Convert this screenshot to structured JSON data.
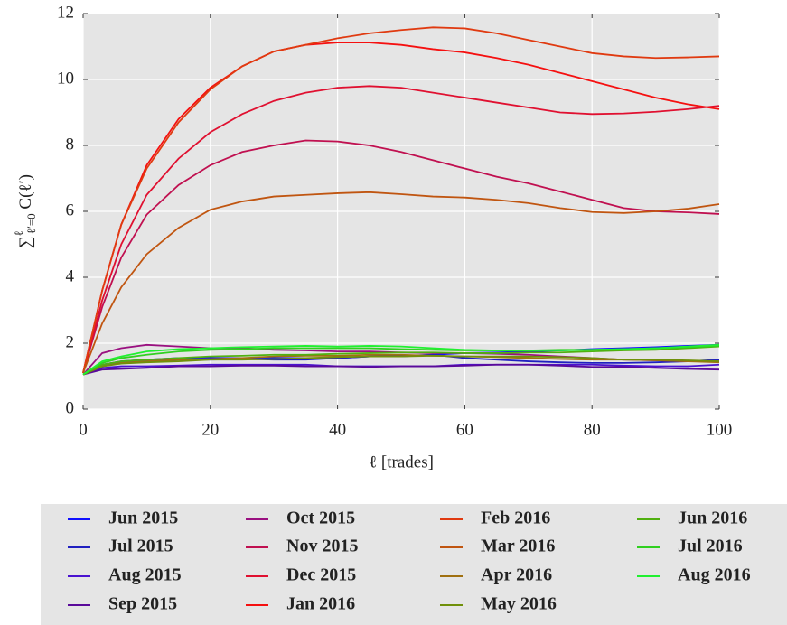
{
  "chart_data": {
    "type": "line",
    "xlabel": "ℓ [trades]",
    "ylabel": {
      "sum": "∑",
      "sup": "ℓ",
      "sub": "ℓ′=0",
      "term": " C(ℓ′)"
    },
    "x": [
      0,
      3,
      6,
      10,
      15,
      20,
      25,
      30,
      35,
      40,
      45,
      50,
      55,
      60,
      65,
      70,
      75,
      80,
      85,
      90,
      95,
      100
    ],
    "xlim": [
      0,
      100
    ],
    "xticks": [
      0,
      20,
      40,
      60,
      80,
      100
    ],
    "ylim": [
      0,
      12
    ],
    "yticks": [
      0,
      2,
      4,
      6,
      8,
      10,
      12
    ],
    "grid": true,
    "legend": "bottom",
    "series": [
      {
        "name": "Jun 2015",
        "color": "#1010ff",
        "values": [
          1.05,
          1.35,
          1.45,
          1.5,
          1.55,
          1.55,
          1.55,
          1.55,
          1.55,
          1.55,
          1.6,
          1.6,
          1.65,
          1.7,
          1.72,
          1.75,
          1.78,
          1.82,
          1.85,
          1.88,
          1.92,
          1.95
        ]
      },
      {
        "name": "Jul 2015",
        "color": "#2020c0",
        "values": [
          1.05,
          1.3,
          1.4,
          1.45,
          1.5,
          1.5,
          1.52,
          1.5,
          1.5,
          1.55,
          1.6,
          1.62,
          1.65,
          1.55,
          1.5,
          1.45,
          1.42,
          1.4,
          1.4,
          1.42,
          1.45,
          1.5
        ]
      },
      {
        "name": "Aug 2015",
        "color": "#4a12d0",
        "values": [
          1.05,
          1.25,
          1.3,
          1.3,
          1.32,
          1.35,
          1.35,
          1.35,
          1.35,
          1.3,
          1.3,
          1.3,
          1.3,
          1.35,
          1.35,
          1.35,
          1.35,
          1.35,
          1.32,
          1.3,
          1.3,
          1.35
        ]
      },
      {
        "name": "Sep 2015",
        "color": "#5a0a9a",
        "values": [
          1.05,
          1.2,
          1.22,
          1.25,
          1.3,
          1.3,
          1.32,
          1.32,
          1.3,
          1.3,
          1.28,
          1.3,
          1.3,
          1.32,
          1.35,
          1.35,
          1.32,
          1.28,
          1.28,
          1.25,
          1.22,
          1.2
        ]
      },
      {
        "name": "Oct 2015",
        "color": "#9a1080",
        "values": [
          1.05,
          1.7,
          1.85,
          1.95,
          1.9,
          1.85,
          1.85,
          1.8,
          1.78,
          1.75,
          1.75,
          1.72,
          1.7,
          1.7,
          1.68,
          1.65,
          1.6,
          1.55,
          1.5,
          1.48,
          1.45,
          1.45
        ]
      },
      {
        "name": "Nov 2015",
        "color": "#c01050",
        "values": [
          1.1,
          3.1,
          4.6,
          5.9,
          6.8,
          7.4,
          7.8,
          8.0,
          8.15,
          8.12,
          8.0,
          7.8,
          7.55,
          7.3,
          7.05,
          6.85,
          6.6,
          6.35,
          6.1,
          6.0,
          5.97,
          5.92
        ]
      },
      {
        "name": "Dec 2015",
        "color": "#e01030",
        "values": [
          1.1,
          3.3,
          5.0,
          6.5,
          7.6,
          8.4,
          8.95,
          9.35,
          9.6,
          9.75,
          9.8,
          9.75,
          9.6,
          9.45,
          9.3,
          9.15,
          9.0,
          8.95,
          8.97,
          9.02,
          9.1,
          9.2
        ]
      },
      {
        "name": "Jan 2016",
        "color": "#f51010",
        "values": [
          1.1,
          3.6,
          5.6,
          7.4,
          8.8,
          9.75,
          10.4,
          10.85,
          11.05,
          11.12,
          11.12,
          11.05,
          10.92,
          10.82,
          10.65,
          10.45,
          10.2,
          9.95,
          9.7,
          9.45,
          9.25,
          9.1
        ]
      },
      {
        "name": "Feb 2016",
        "color": "#e03a10",
        "values": [
          1.1,
          3.6,
          5.6,
          7.3,
          8.7,
          9.7,
          10.4,
          10.85,
          11.05,
          11.25,
          11.4,
          11.5,
          11.58,
          11.55,
          11.4,
          11.2,
          11.0,
          10.8,
          10.7,
          10.65,
          10.67,
          10.7
        ]
      },
      {
        "name": "Mar 2016",
        "color": "#c05510",
        "values": [
          1.1,
          2.6,
          3.7,
          4.7,
          5.5,
          6.05,
          6.3,
          6.45,
          6.5,
          6.55,
          6.58,
          6.52,
          6.45,
          6.42,
          6.35,
          6.25,
          6.1,
          5.98,
          5.95,
          6.0,
          6.08,
          6.22
        ]
      },
      {
        "name": "Apr 2016",
        "color": "#a07010",
        "values": [
          1.05,
          1.3,
          1.4,
          1.45,
          1.5,
          1.52,
          1.55,
          1.6,
          1.62,
          1.62,
          1.65,
          1.65,
          1.62,
          1.6,
          1.58,
          1.55,
          1.52,
          1.5,
          1.5,
          1.48,
          1.45,
          1.42
        ]
      },
      {
        "name": "May 2016",
        "color": "#70900a",
        "values": [
          1.05,
          1.3,
          1.38,
          1.42,
          1.45,
          1.5,
          1.5,
          1.52,
          1.55,
          1.58,
          1.6,
          1.6,
          1.62,
          1.6,
          1.6,
          1.6,
          1.58,
          1.55,
          1.5,
          1.5,
          1.48,
          1.45
        ]
      },
      {
        "name": "Jun 2016",
        "color": "#50b010",
        "values": [
          1.05,
          1.35,
          1.45,
          1.5,
          1.55,
          1.6,
          1.62,
          1.65,
          1.65,
          1.68,
          1.7,
          1.72,
          1.72,
          1.7,
          1.7,
          1.72,
          1.72,
          1.75,
          1.78,
          1.8,
          1.85,
          1.9
        ]
      },
      {
        "name": "Jul 2016",
        "color": "#30d020",
        "values": [
          1.05,
          1.4,
          1.55,
          1.65,
          1.75,
          1.8,
          1.82,
          1.85,
          1.85,
          1.85,
          1.85,
          1.82,
          1.8,
          1.78,
          1.78,
          1.78,
          1.8,
          1.8,
          1.82,
          1.85,
          1.88,
          1.92
        ]
      },
      {
        "name": "Aug 2016",
        "color": "#20f030",
        "values": [
          1.05,
          1.45,
          1.6,
          1.75,
          1.82,
          1.85,
          1.88,
          1.9,
          1.92,
          1.9,
          1.92,
          1.9,
          1.85,
          1.8,
          1.78,
          1.78,
          1.78,
          1.8,
          1.82,
          1.85,
          1.9,
          1.95
        ]
      }
    ]
  }
}
